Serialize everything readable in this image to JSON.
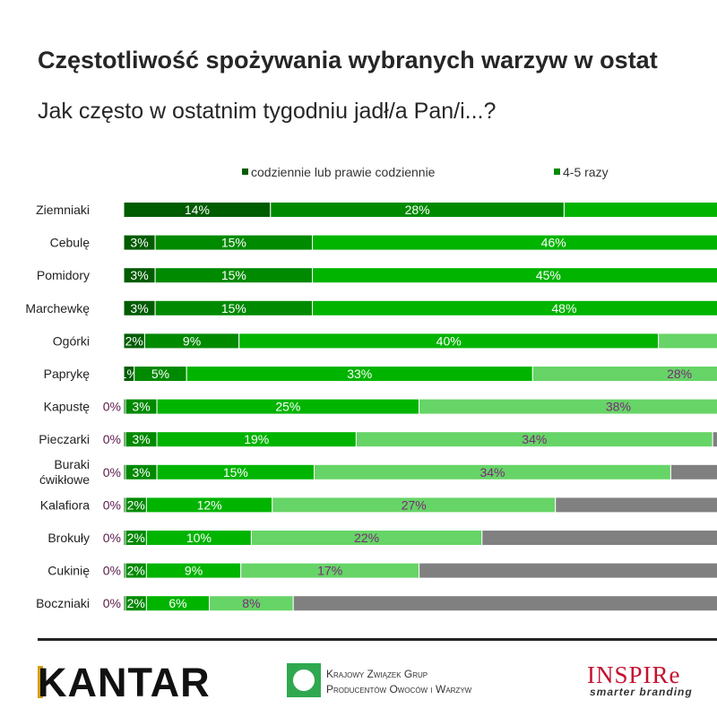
{
  "chart_data": {
    "type": "bar",
    "orientation": "horizontal",
    "stacked": true,
    "title": "Częstotliwość spożywania wybranych warzyw w ostat",
    "subtitle": "Jak często w ostatnim tygodniu jadł/a Pan/i...?",
    "legend": [
      {
        "label": "codziennie lub prawie codziennie",
        "color": "#005c00"
      },
      {
        "label": "4-5 razy",
        "color": "#008a00"
      }
    ],
    "legend_position": "top",
    "segment_colors": [
      "#005c00",
      "#008a00",
      "#00b400",
      "#66d466",
      "#808080"
    ],
    "categories": [
      "Ziemniaki",
      "Cebulę",
      "Pomidory",
      "Marchewkę",
      "Ogórki",
      "Paprykę",
      "Kapustę",
      "Pieczarki",
      "Buraki ćwikłowe",
      "Kalafiora",
      "Brokuły",
      "Cukinię",
      "Boczniaki"
    ],
    "values": [
      [
        14,
        28,
        null
      ],
      [
        3,
        15,
        46
      ],
      [
        3,
        15,
        45
      ],
      [
        3,
        15,
        48
      ],
      [
        2,
        9,
        40,
        null
      ],
      [
        1,
        5,
        33,
        28
      ],
      [
        0,
        3,
        25,
        38
      ],
      [
        0,
        3,
        19,
        34,
        null
      ],
      [
        0,
        3,
        15,
        34,
        null
      ],
      [
        0,
        2,
        12,
        27,
        null
      ],
      [
        0,
        2,
        10,
        22,
        null
      ],
      [
        0,
        2,
        9,
        17,
        null
      ],
      [
        0,
        2,
        6,
        8,
        null
      ]
    ],
    "unit": "%",
    "grid": false
  },
  "footer": {
    "kantar_logo": "KANTAR",
    "kzgp_line1": "Krajowy Związek Grup",
    "kzgp_line2": "Producentów Owoców i Warzyw",
    "inspire_logo": "INSPIRe",
    "inspire_tagline": "smarter branding"
  }
}
